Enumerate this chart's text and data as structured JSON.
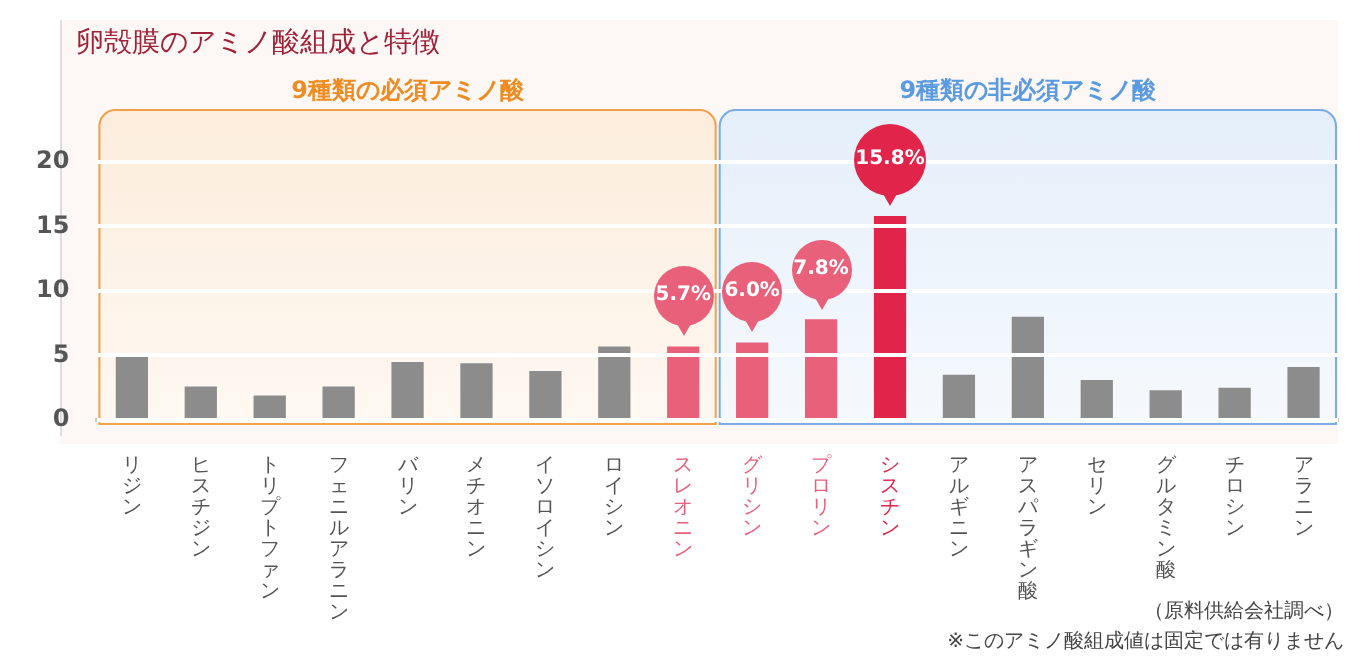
{
  "chart_data": {
    "type": "bar",
    "title": "卵殻膜のアミノ酸組成と特徴",
    "categories": [
      "リジン",
      "ヒスチジン",
      "トリプトファン",
      "フェニルアラニン",
      "バリン",
      "メチオニン",
      "イソロイシン",
      "ロイシン",
      "スレオニン",
      "グリシン",
      "プロリン",
      "シスチン",
      "アルギニン",
      "アスパラギン酸",
      "セリン",
      "グルタミン酸",
      "チロシン",
      "アラニン"
    ],
    "values": [
      5.1,
      2.6,
      1.9,
      2.6,
      4.5,
      4.4,
      3.8,
      5.7,
      5.7,
      6.0,
      7.8,
      15.8,
      3.5,
      8.0,
      3.1,
      2.3,
      2.5,
      4.1
    ],
    "colors": [
      "#8c8c8c",
      "#8c8c8c",
      "#8c8c8c",
      "#8c8c8c",
      "#8c8c8c",
      "#8c8c8c",
      "#8c8c8c",
      "#8c8c8c",
      "#e8607a",
      "#e8607a",
      "#e8607a",
      "#e0244a",
      "#8c8c8c",
      "#8c8c8c",
      "#8c8c8c",
      "#8c8c8c",
      "#8c8c8c",
      "#8c8c8c"
    ],
    "value_labels": [
      null,
      null,
      null,
      null,
      null,
      null,
      null,
      null,
      "5.7%",
      "6.0%",
      "7.8%",
      "15.8%",
      null,
      null,
      null,
      null,
      null,
      null
    ],
    "ylim": [
      0,
      24
    ],
    "yticks": [
      0,
      5,
      10,
      15,
      20
    ],
    "grid": "y",
    "legend": false,
    "bands": [
      {
        "axis": "x",
        "from": "リジン",
        "to": "スレオニン",
        "label": "9種類の必須アミノ酸",
        "color": "#ec8c22"
      },
      {
        "axis": "x",
        "from": "グリシン",
        "to": "アラニン",
        "label": "9種類の非必須アミノ酸",
        "color": "#5a9ae0"
      }
    ],
    "annotations": [
      "（原料供給会社調べ）",
      "※このアミノ酸組成値は固定では有りません"
    ]
  }
}
